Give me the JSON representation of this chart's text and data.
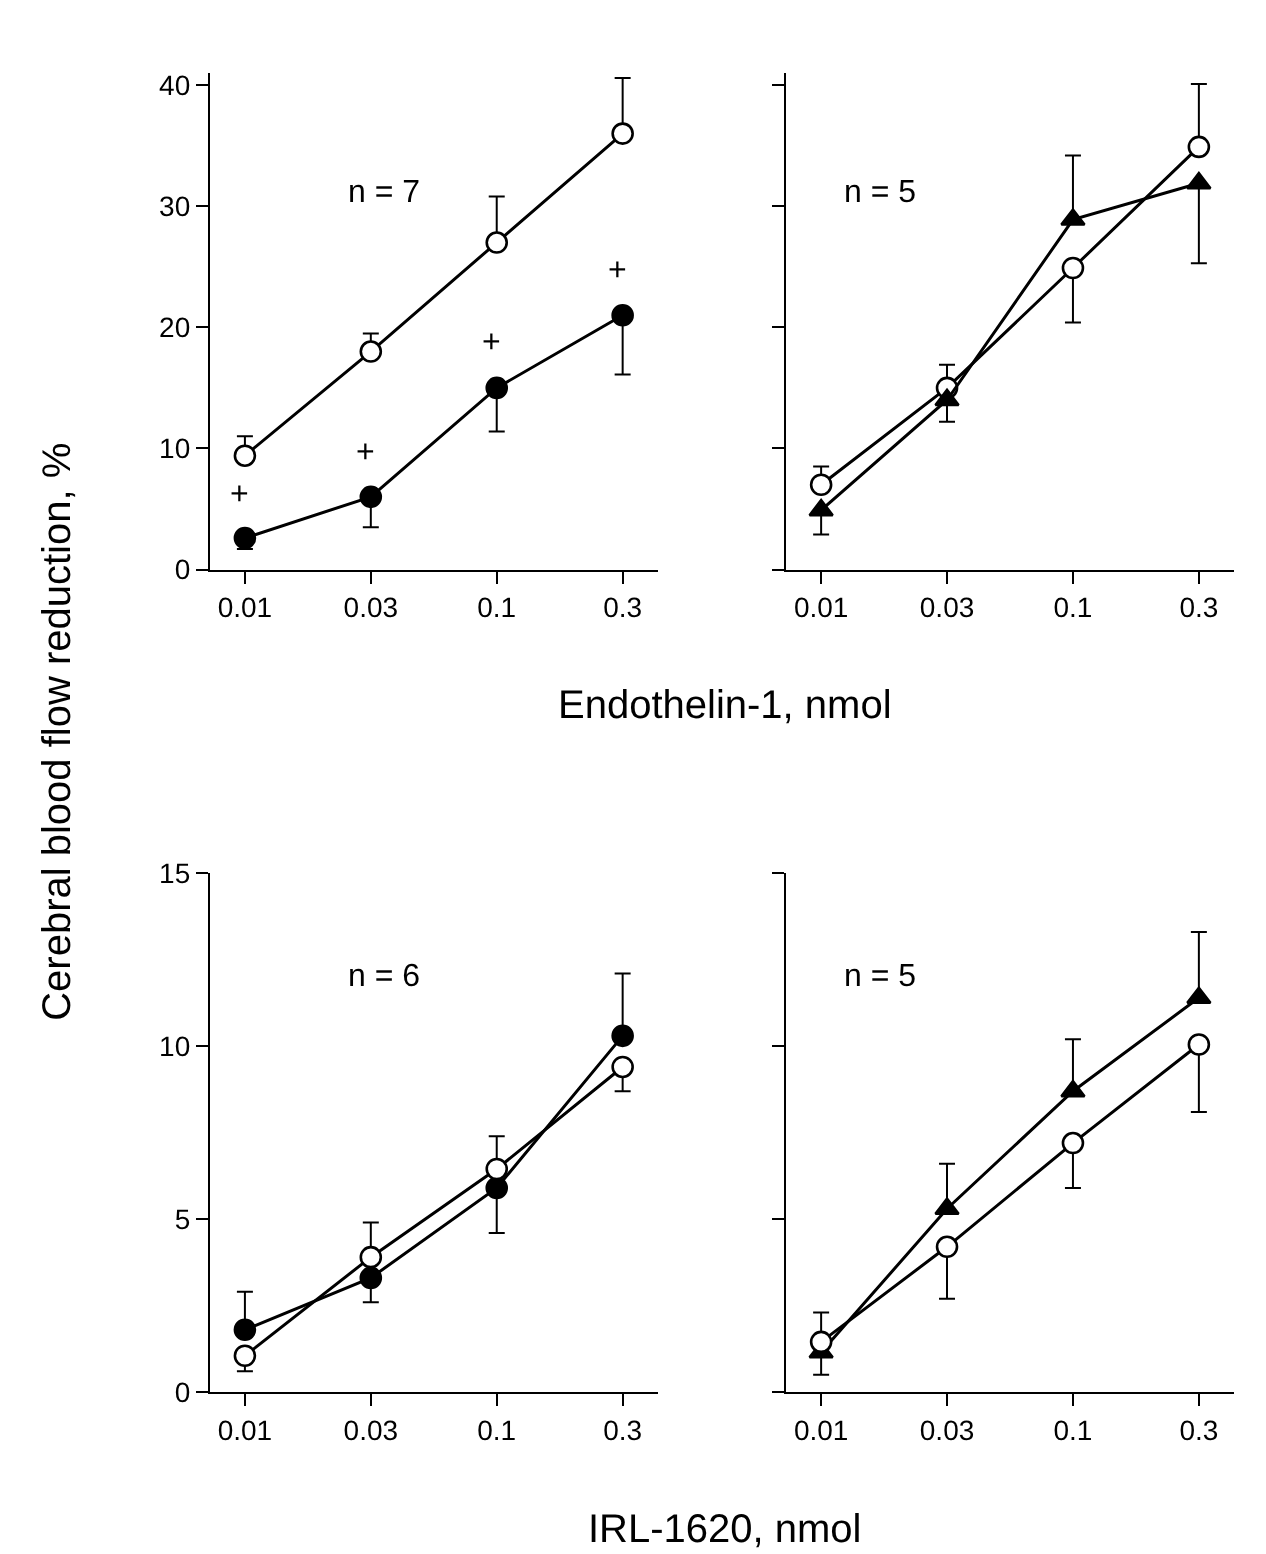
{
  "chart_data": [
    {
      "type": "line",
      "categories": [
        "0.01",
        "0.03",
        "0.1",
        "0.3"
      ],
      "ylabel": "Cerebral blood flow reduction, %",
      "xlabel": "Endothelin-1, nmol",
      "ylim": [
        0,
        41
      ],
      "yticks": [
        0,
        10,
        20,
        30,
        40
      ],
      "marker": "circle",
      "annotations": [
        "n = 7",
        "+",
        "+",
        "+",
        "+"
      ],
      "series": [
        {
          "color": "#000000",
          "colors": [
            "#ffffff",
            "#ffffff",
            "#ffffff",
            "#ffffff"
          ],
          "values": [
            9.4,
            18,
            27,
            36
          ],
          "errors": [
            [
              9.4,
              11
            ],
            [
              18,
              19.5
            ],
            [
              27,
              30.8
            ],
            [
              36,
              40.6
            ]
          ]
        },
        {
          "color": "#000000",
          "values": [
            2.6,
            6,
            15,
            21
          ],
          "errors": [
            [
              1.7,
              2.6
            ],
            [
              3.5,
              6
            ],
            [
              11.4,
              15
            ],
            [
              16.1,
              21
            ]
          ]
        }
      ]
    },
    {
      "type": "line",
      "categories": [
        "0.01",
        "0.03",
        "0.1",
        "0.3"
      ],
      "ylim": [
        0,
        41
      ],
      "yticks": [
        {
          "value": 0,
          "label": null
        },
        {
          "value": 10,
          "label": null
        },
        {
          "value": 20,
          "label": null
        },
        {
          "value": 30,
          "label": null
        },
        {
          "value": 40,
          "label": null
        }
      ],
      "tick_labels": "x",
      "annotations": [
        "n = 5"
      ],
      "series": [
        {
          "color": "#000000",
          "colors": [
            "#ffffff",
            "#ffffff",
            "#ffffff",
            "#ffffff"
          ],
          "marker": "circle",
          "values": [
            7,
            15,
            24.9,
            34.9
          ],
          "errors": [
            [
              7,
              8.5
            ],
            [
              15,
              16.9
            ],
            [
              20.4,
              24.9
            ],
            [
              34.9,
              40.1
            ]
          ]
        },
        {
          "color": "#000000",
          "marker": "triangle",
          "values": [
            4.9,
            14,
            28.9,
            31.9
          ],
          "errors": [
            [
              2.9,
              4.9
            ],
            [
              12.2,
              14
            ],
            [
              28.9,
              34.2
            ],
            [
              25.3,
              31.9
            ]
          ]
        }
      ]
    },
    {
      "type": "line",
      "categories": [
        "0.01",
        "0.03",
        "0.1",
        "0.3"
      ],
      "xlabel": "IRL-1620, nmol",
      "ylim": [
        0,
        15
      ],
      "yticks": [
        0,
        5,
        10,
        15
      ],
      "marker": "circle",
      "annotations": [
        "n = 6"
      ],
      "series": [
        {
          "color": "#000000",
          "values": [
            1.8,
            3.3,
            5.9,
            10.3
          ],
          "errors": [
            [
              1.8,
              2.9
            ],
            [
              2.6,
              3.3
            ],
            [
              4.6,
              5.9
            ],
            [
              10.3,
              12.1
            ]
          ]
        },
        {
          "color": "#000000",
          "colors": [
            "#ffffff",
            "#ffffff",
            "#ffffff",
            "#ffffff"
          ],
          "values": [
            1.05,
            3.9,
            6.45,
            9.4
          ],
          "errors": [
            [
              0.6,
              1.05
            ],
            [
              3.9,
              4.9
            ],
            [
              6.45,
              7.4
            ],
            [
              8.7,
              9.4
            ]
          ]
        }
      ]
    },
    {
      "type": "line",
      "categories": [
        "0.01",
        "0.03",
        "0.1",
        "0.3"
      ],
      "ylim": [
        0,
        15
      ],
      "yticks": [
        {
          "value": 0,
          "label": null
        },
        {
          "value": 5,
          "label": null
        },
        {
          "value": 10,
          "label": null
        },
        {
          "value": 15,
          "label": null
        }
      ],
      "tick_labels": "x",
      "annotations": [
        "n = 5"
      ],
      "series": [
        {
          "color": "#000000",
          "marker": "triangle",
          "values": [
            1.15,
            5.3,
            8.7,
            11.4
          ],
          "errors": [
            [
              0.5,
              1.15
            ],
            [
              5.3,
              6.6
            ],
            [
              8.7,
              10.2
            ],
            [
              11.4,
              13.3
            ]
          ]
        },
        {
          "color": "#000000",
          "colors": [
            "#ffffff",
            "#ffffff",
            "#ffffff",
            "#ffffff"
          ],
          "marker": "circle",
          "values": [
            1.45,
            4.2,
            7.2,
            10.05
          ],
          "errors": [
            [
              1.45,
              2.3
            ],
            [
              2.7,
              4.2
            ],
            [
              5.9,
              7.2
            ],
            [
              8.1,
              10.05
            ]
          ]
        }
      ]
    }
  ]
}
